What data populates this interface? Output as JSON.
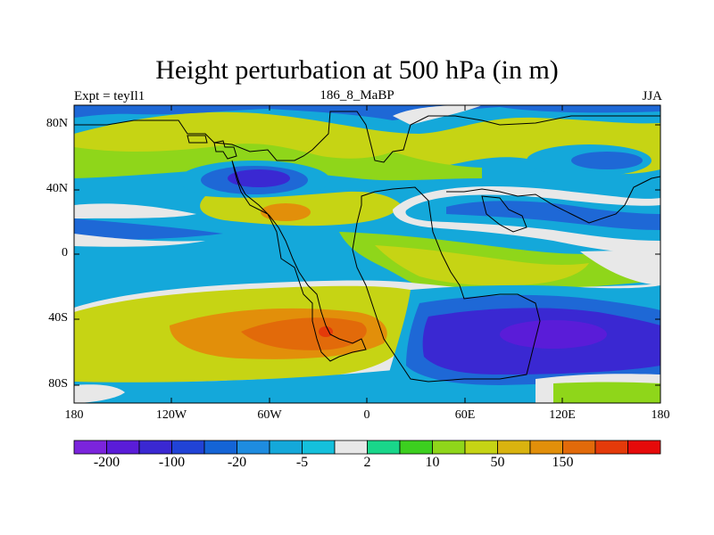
{
  "title": "Height perturbation at 500 hPa (in m)",
  "subtitle_left": "Expt = teyIl1",
  "subtitle_center": "186_8_MaBP",
  "subtitle_right": "JJA",
  "lat_labels": [
    "80N",
    "40N",
    "0",
    "40S",
    "80S"
  ],
  "lon_labels": [
    "180",
    "120W",
    "60W",
    "0",
    "60E",
    "120E",
    "180"
  ],
  "colorbar": {
    "colors": [
      "#7b24dc",
      "#5a1cd8",
      "#3a28d2",
      "#2143d6",
      "#1464d6",
      "#1e8ce0",
      "#14a8da",
      "#14c0dc",
      "#e8e8e8",
      "#19d68a",
      "#3ccf1f",
      "#8fd61a",
      "#c6d414",
      "#d9b30f",
      "#e28f0a",
      "#e26a0a",
      "#e43a0a",
      "#e60a0a"
    ],
    "labels": [
      "-200",
      "-100",
      "-20",
      "-5",
      "2",
      "10",
      "50",
      "150"
    ]
  },
  "palette": {
    "strong_neg": "#3a28d2",
    "mid_neg": "#1e68d6",
    "weak_neg": "#14a8da",
    "neutral": "#e8e8e8",
    "weak_pos": "#8fd61a",
    "mid_pos": "#c6d414",
    "strong_pos": "#e28f0a",
    "max_pos": "#e43a0a"
  }
}
